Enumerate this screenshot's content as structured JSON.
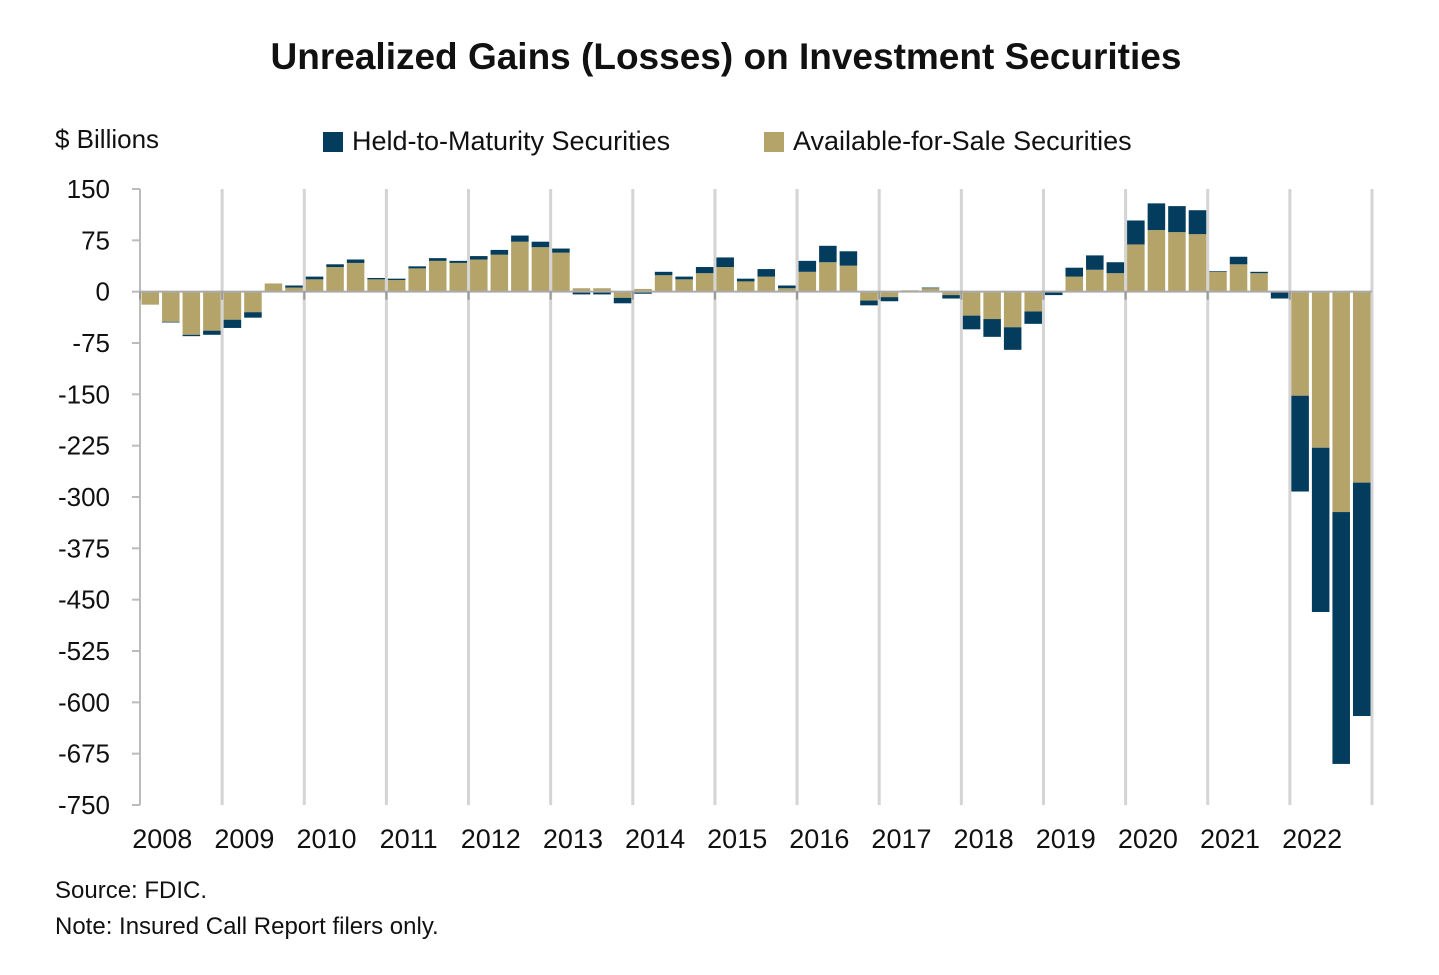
{
  "chart_data": {
    "type": "bar",
    "stacked": true,
    "title": "Unrealized Gains (Losses) on Investment Securities",
    "ylabel": "$ Billions",
    "xlabel": "",
    "ylim": [
      -750,
      150
    ],
    "yticks": [
      150,
      75,
      0,
      -75,
      -150,
      -225,
      -300,
      -375,
      -450,
      -525,
      -600,
      -675,
      -750
    ],
    "year_labels": [
      "2008",
      "2009",
      "2010",
      "2011",
      "2012",
      "2013",
      "2014",
      "2015",
      "2016",
      "2017",
      "2018",
      "2019",
      "2020",
      "2021",
      "2022"
    ],
    "quarters_per_year": 4,
    "grid": "vertical lines at year boundaries",
    "legend_placement": "top",
    "series": [
      {
        "name": "Held-to-Maturity Securities",
        "color": "#033c5c",
        "values": [
          0,
          -1,
          -2,
          -6,
          -12,
          -8,
          0,
          3,
          4,
          4,
          5,
          2,
          2,
          3,
          4,
          3,
          5,
          7,
          9,
          8,
          6,
          -4,
          -4,
          -8,
          -3,
          5,
          4,
          9,
          14,
          4,
          11,
          4,
          16,
          24,
          21,
          -7,
          -6,
          0,
          1,
          -5,
          -20,
          -26,
          -33,
          -18,
          -4,
          13,
          21,
          16,
          35,
          39,
          38,
          35,
          1,
          11,
          2,
          -10,
          -140,
          -240,
          -368,
          -341
        ]
      },
      {
        "name": "Available-for-Sale Securities",
        "color": "#b5a46a",
        "values": [
          -19,
          -44,
          -63,
          -57,
          -41,
          -30,
          12,
          6,
          18,
          36,
          42,
          18,
          17,
          34,
          45,
          42,
          47,
          54,
          73,
          65,
          57,
          5,
          5,
          -9,
          4,
          24,
          18,
          27,
          36,
          15,
          22,
          5,
          29,
          43,
          38,
          -13,
          -8,
          2,
          5,
          -5,
          -35,
          -40,
          -52,
          -29,
          -1,
          22,
          32,
          27,
          69,
          90,
          87,
          84,
          29,
          40,
          27,
          1,
          -152,
          -228,
          -322,
          -279
        ]
      }
    ]
  },
  "footer": {
    "source": "Source: FDIC.",
    "note": "Note: Insured Call Report filers only."
  }
}
